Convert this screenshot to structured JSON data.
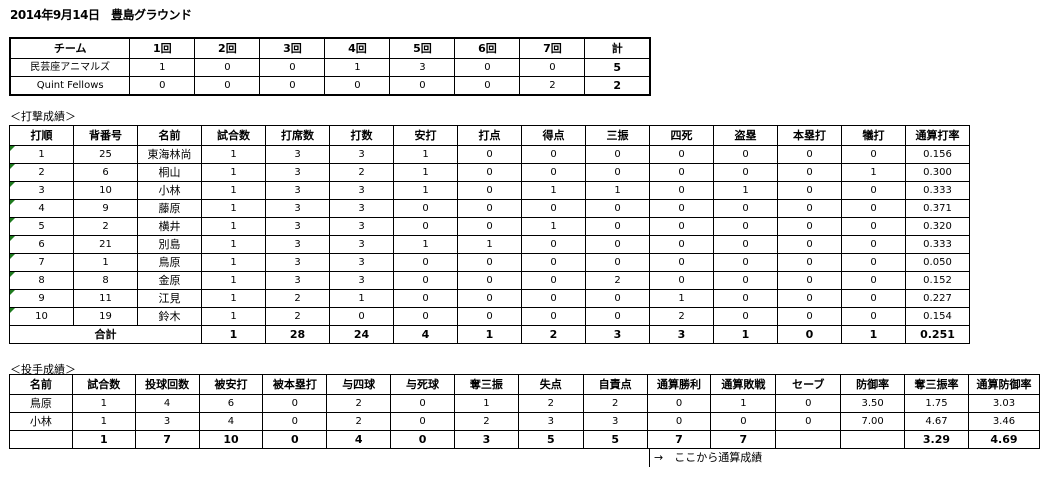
{
  "title": "2014年9月14日　豊島グラウンド",
  "scoreboard": {
    "headers": [
      "チーム",
      "1回",
      "2回",
      "3回",
      "4回",
      "5回",
      "6回",
      "7回",
      "計"
    ],
    "rows": [
      [
        "民芸座アニマルズ",
        "1",
        "0",
        "0",
        "1",
        "3",
        "0",
        "0",
        "5"
      ],
      [
        "Quint Fellows",
        "0",
        "0",
        "0",
        "0",
        "0",
        "0",
        "2",
        "2"
      ]
    ]
  },
  "batting": {
    "label": "＜打撃成績＞",
    "headers": [
      "打順",
      "背番号",
      "名前",
      "試合数",
      "打席数",
      "打数",
      "安打",
      "打点",
      "得点",
      "三振",
      "四死",
      "盗塁",
      "本塁打",
      "犠打",
      "通算打率"
    ],
    "rows": [
      [
        "1",
        "25",
        "東海林尚",
        "1",
        "3",
        "3",
        "1",
        "0",
        "0",
        "0",
        "0",
        "0",
        "0",
        "0",
        "0.156"
      ],
      [
        "2",
        "6",
        "桐山",
        "1",
        "3",
        "2",
        "1",
        "0",
        "0",
        "0",
        "0",
        "0",
        "0",
        "1",
        "0.300"
      ],
      [
        "3",
        "10",
        "小林",
        "1",
        "3",
        "3",
        "1",
        "0",
        "1",
        "1",
        "0",
        "1",
        "0",
        "0",
        "0.333"
      ],
      [
        "4",
        "9",
        "藤原",
        "1",
        "3",
        "3",
        "0",
        "0",
        "0",
        "0",
        "0",
        "0",
        "0",
        "0",
        "0.371"
      ],
      [
        "5",
        "2",
        "横井",
        "1",
        "3",
        "3",
        "0",
        "0",
        "1",
        "0",
        "0",
        "0",
        "0",
        "0",
        "0.320"
      ],
      [
        "6",
        "21",
        "別島",
        "1",
        "3",
        "3",
        "1",
        "1",
        "0",
        "0",
        "0",
        "0",
        "0",
        "0",
        "0.333"
      ],
      [
        "7",
        "1",
        "鳥原",
        "1",
        "3",
        "3",
        "0",
        "0",
        "0",
        "0",
        "0",
        "0",
        "0",
        "0",
        "0.050"
      ],
      [
        "8",
        "8",
        "金原",
        "1",
        "3",
        "3",
        "0",
        "0",
        "0",
        "2",
        "0",
        "0",
        "0",
        "0",
        "0.152"
      ],
      [
        "9",
        "11",
        "江見",
        "1",
        "2",
        "1",
        "0",
        "0",
        "0",
        "0",
        "1",
        "0",
        "0",
        "0",
        "0.227"
      ],
      [
        "10",
        "19",
        "鈴木",
        "1",
        "2",
        "0",
        "0",
        "0",
        "0",
        "0",
        "2",
        "0",
        "0",
        "0",
        "0.154"
      ]
    ],
    "total_label": "合計",
    "totals": [
      "1",
      "28",
      "24",
      "4",
      "1",
      "2",
      "3",
      "3",
      "1",
      "0",
      "1",
      "0.251"
    ]
  },
  "pitching": {
    "label": "＜投手成績＞",
    "headers": [
      "名前",
      "試合数",
      "投球回数",
      "被安打",
      "被本塁打",
      "与四球",
      "与死球",
      "奪三振",
      "失点",
      "自責点",
      "通算勝利",
      "通算敗戦",
      "セーブ",
      "防御率",
      "奪三振率",
      "通算防御率"
    ],
    "rows": [
      [
        "鳥原",
        "1",
        "4",
        "6",
        "0",
        "2",
        "0",
        "1",
        "2",
        "2",
        "0",
        "1",
        "0",
        "3.50",
        "1.75",
        "3.03"
      ],
      [
        "小林",
        "1",
        "3",
        "4",
        "0",
        "2",
        "0",
        "2",
        "3",
        "3",
        "0",
        "0",
        "0",
        "7.00",
        "4.67",
        "3.46"
      ]
    ],
    "totals": [
      "",
      "1",
      "7",
      "10",
      "0",
      "4",
      "0",
      "3",
      "5",
      "5",
      "7",
      "7",
      "",
      "",
      "3.29",
      "4.69"
    ],
    "note": "→　ここから通算成績"
  }
}
